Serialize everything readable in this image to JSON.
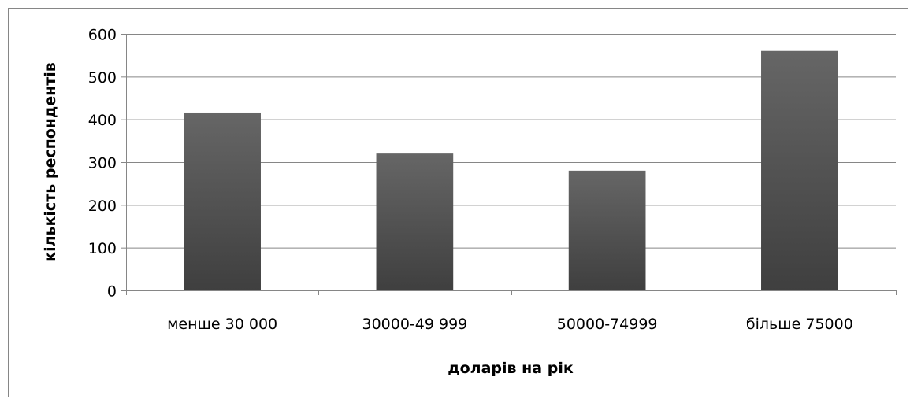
{
  "chart_data": {
    "type": "bar",
    "categories": [
      "менше 30 000",
      "30000-49 999",
      "50000-74999",
      "більше 75000"
    ],
    "values": [
      416,
      320,
      280,
      560
    ],
    "title": "",
    "xlabel": "доларів на рік",
    "ylabel": "кількість респондентів",
    "ylim": [
      0,
      600
    ],
    "yticks": [
      0,
      100,
      200,
      300,
      400,
      500,
      600
    ],
    "grid": true,
    "legend": "none",
    "bar_color_top": "#666666",
    "bar_color_bottom": "#3f3f3f",
    "grid_color": "#868686"
  }
}
